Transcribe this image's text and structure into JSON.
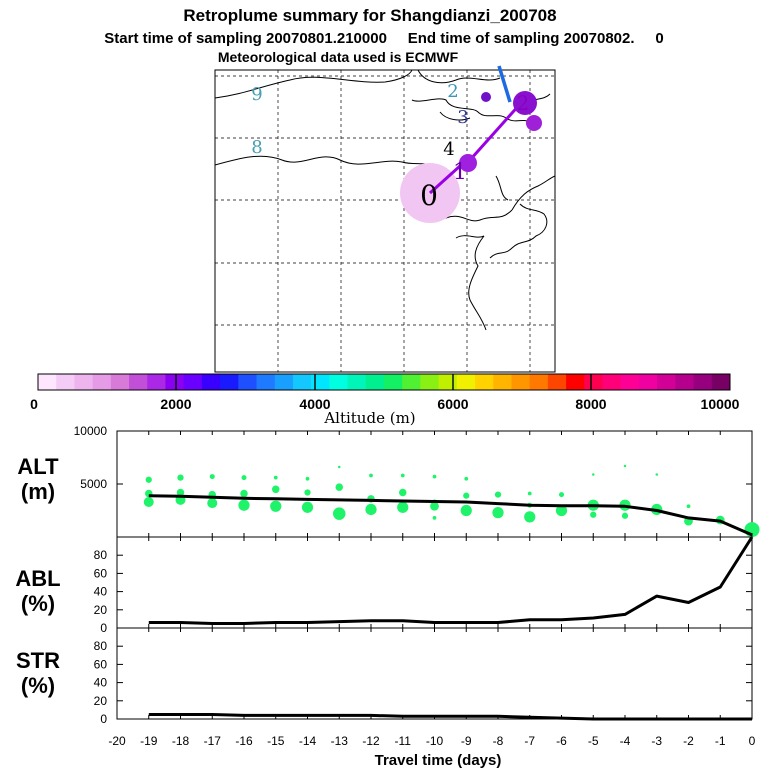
{
  "title": "Retroplume summary for Shangdianzi_200708",
  "sampling_line": "Start time of sampling 20070801.210000     End time of sampling 20070802.     0",
  "met_line": "Meteorological data used is ECMWF",
  "colorbar": {
    "label": "Altitude (m)",
    "tick_labels": [
      "0",
      "2000",
      "4000",
      "6000",
      "8000",
      "10000"
    ],
    "colors": [
      "#ffe6ff",
      "#f5ccf5",
      "#eeb4ee",
      "#e69be6",
      "#d87ad8",
      "#c24fd8",
      "#aa28e6",
      "#8a00f0",
      "#6a00ff",
      "#3a00ff",
      "#1a1aff",
      "#1e50ff",
      "#1e7aff",
      "#19a0ff",
      "#14c8ff",
      "#00e6ff",
      "#00ffe0",
      "#00f5b8",
      "#00f090",
      "#14f064",
      "#50f032",
      "#8af014",
      "#c0f000",
      "#f0f000",
      "#ffd200",
      "#ffb400",
      "#ff9600",
      "#ff7800",
      "#ff4600",
      "#ff0000",
      "#ff0050",
      "#ff0078",
      "#ff0096",
      "#f000a0",
      "#d20096",
      "#b4008c",
      "#96007f",
      "#780064"
    ]
  },
  "map_labels": [
    {
      "text": "9",
      "color": "#46a0b4"
    },
    {
      "text": "8",
      "color": "#46a0b4"
    },
    {
      "text": "2",
      "color": "#3c96b4"
    },
    {
      "text": "3",
      "color": "#323c96"
    },
    {
      "text": "4",
      "color": "#000000"
    },
    {
      "text": "2",
      "color": "#8a00c0"
    },
    {
      "text": "1",
      "color": "#6a00aa"
    },
    {
      "text": "0",
      "color": "#000000"
    }
  ],
  "panels": {
    "alt": {
      "label_line1": "ALT",
      "label_line2": "(m)"
    },
    "abl": {
      "label_line1": "ABL",
      "label_line2": "(%)"
    },
    "str": {
      "label_line1": "STR",
      "label_line2": "(%)"
    }
  },
  "chart_data": {
    "type": "line",
    "xlabel": "Travel time (days)",
    "x_ticks": [
      -20,
      -19,
      -18,
      -17,
      -16,
      -15,
      -14,
      -13,
      -12,
      -11,
      -10,
      -9,
      -8,
      -7,
      -6,
      -5,
      -4,
      -3,
      -2,
      -1,
      0
    ],
    "xlim": [
      -20,
      0
    ],
    "x": [
      -19,
      -18,
      -17,
      -16,
      -15,
      -14,
      -13,
      -12,
      -11,
      -10,
      -9,
      -8,
      -7,
      -6,
      -5,
      -4,
      -3,
      -2,
      -1,
      0
    ],
    "alt": {
      "ylabel": "ALT (m)",
      "ylim": [
        0,
        10000
      ],
      "y_ticks": [
        5000,
        10000
      ],
      "mean_altitude": [
        3900,
        3850,
        3750,
        3650,
        3600,
        3550,
        3500,
        3450,
        3400,
        3350,
        3300,
        3150,
        3000,
        2950,
        2950,
        2900,
        2500,
        1800,
        1500,
        200
      ],
      "cluster_altitudes": [
        {
          "t": -19,
          "alts": [
            5400,
            4100,
            3300
          ],
          "sizes": [
            5,
            6,
            8
          ]
        },
        {
          "t": -18,
          "alts": [
            5600,
            4200,
            3500
          ],
          "sizes": [
            5,
            6,
            8
          ]
        },
        {
          "t": -17,
          "alts": [
            5700,
            4000,
            3200
          ],
          "sizes": [
            4,
            6,
            8
          ]
        },
        {
          "t": -16,
          "alts": [
            5600,
            4100,
            3000
          ],
          "sizes": [
            4,
            6,
            9
          ]
        },
        {
          "t": -15,
          "alts": [
            5600,
            4500,
            2900
          ],
          "sizes": [
            3,
            6,
            9
          ]
        },
        {
          "t": -14,
          "alts": [
            5500,
            4200,
            2800
          ],
          "sizes": [
            3,
            5,
            9
          ]
        },
        {
          "t": -13,
          "alts": [
            6600,
            4700,
            2200
          ],
          "sizes": [
            2,
            6,
            10
          ]
        },
        {
          "t": -12,
          "alts": [
            5800,
            3600,
            2600
          ],
          "sizes": [
            3,
            6,
            9
          ]
        },
        {
          "t": -11,
          "alts": [
            5800,
            4200,
            2800
          ],
          "sizes": [
            3,
            6,
            9
          ]
        },
        {
          "t": -10,
          "alts": [
            5700,
            3300,
            2900,
            1800
          ],
          "sizes": [
            3,
            4,
            7,
            3
          ]
        },
        {
          "t": -9,
          "alts": [
            5500,
            3900,
            2500
          ],
          "sizes": [
            3,
            5,
            9
          ]
        },
        {
          "t": -8,
          "alts": [
            4000,
            2300
          ],
          "sizes": [
            5,
            9
          ]
        },
        {
          "t": -7,
          "alts": [
            4100,
            3000,
            1900
          ],
          "sizes": [
            3,
            4,
            9
          ]
        },
        {
          "t": -6,
          "alts": [
            4000,
            2500
          ],
          "sizes": [
            4,
            9
          ]
        },
        {
          "t": -5,
          "alts": [
            5900,
            3000,
            2100
          ],
          "sizes": [
            2,
            9,
            5
          ]
        },
        {
          "t": -4,
          "alts": [
            6700,
            3000,
            2000
          ],
          "sizes": [
            2,
            9,
            5
          ]
        },
        {
          "t": -3,
          "alts": [
            5900,
            2600
          ],
          "sizes": [
            2,
            9
          ]
        },
        {
          "t": -2,
          "alts": [
            2900,
            1500
          ],
          "sizes": [
            3,
            7
          ]
        },
        {
          "t": -1,
          "alts": [
            1600
          ],
          "sizes": [
            7
          ]
        },
        {
          "t": 0,
          "alts": [
            700
          ],
          "sizes": [
            12
          ]
        }
      ]
    },
    "abl": {
      "ylabel": "ABL (%)",
      "ylim": [
        0,
        100
      ],
      "y_ticks": [
        0,
        20,
        40,
        60,
        80
      ],
      "values": [
        6,
        6,
        5,
        5,
        6,
        6,
        7,
        8,
        8,
        6,
        6,
        6,
        9,
        9,
        11,
        15,
        35,
        28,
        45,
        100
      ]
    },
    "str": {
      "ylabel": "STR (%)",
      "ylim": [
        0,
        100
      ],
      "y_ticks": [
        0,
        20,
        40,
        60,
        80
      ],
      "values": [
        5,
        5,
        5,
        4,
        4,
        4,
        4,
        4,
        3,
        3,
        3,
        3,
        2,
        1,
        0,
        0,
        0,
        0,
        0,
        0
      ]
    },
    "x_tick_labels": [
      "-20",
      "-19",
      "-18",
      "-17",
      "-16",
      "-15",
      "-14",
      "-13",
      "-12",
      "-11",
      "-10",
      "-9",
      "-8",
      "-7",
      "-6",
      "-5",
      "-4",
      "-3",
      "-2",
      "-1",
      "0"
    ]
  }
}
